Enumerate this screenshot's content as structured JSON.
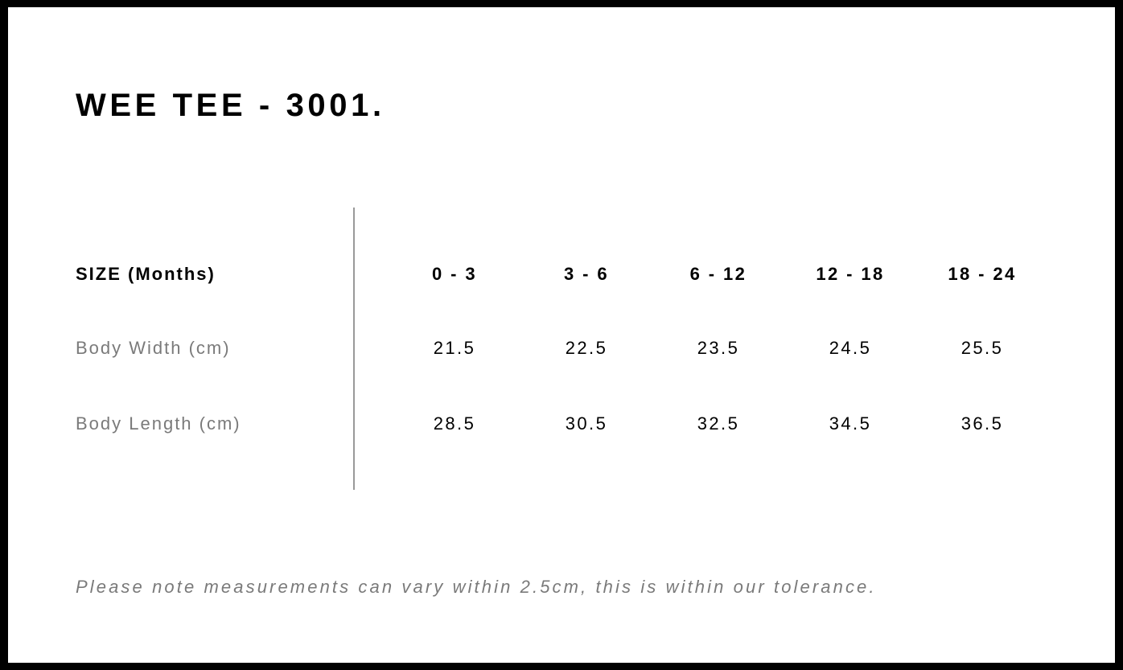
{
  "title": "WEE TEE - 3001.",
  "table": {
    "header_label": "SIZE (Months)",
    "sizes": [
      "0 - 3",
      "3 - 6",
      "6 - 12",
      "12 - 18",
      "18 - 24"
    ],
    "rows": [
      {
        "label": "Body Width (cm)",
        "values": [
          "21.5",
          "22.5",
          "23.5",
          "24.5",
          "25.5"
        ]
      },
      {
        "label": "Body Length (cm)",
        "values": [
          "28.5",
          "30.5",
          "32.5",
          "34.5",
          "36.5"
        ]
      }
    ]
  },
  "note": "Please note measurements can vary within 2.5cm, this is within our tolerance."
}
